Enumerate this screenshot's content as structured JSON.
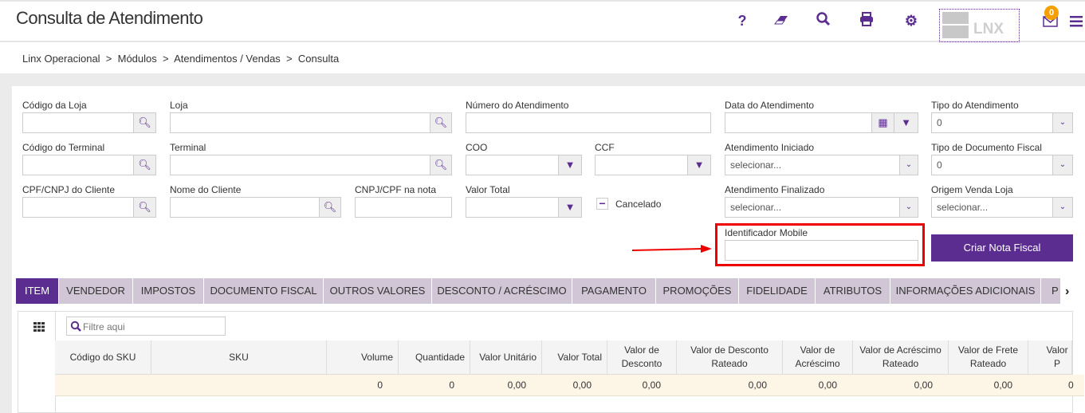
{
  "header": {
    "title": "Consulta de Atendimento",
    "icons": [
      "help-icon",
      "eraser-icon",
      "search-icon",
      "print-icon",
      "gear-icon"
    ],
    "logo_text": "LNX",
    "notifications_count": "0"
  },
  "breadcrumb": [
    "Linx Operacional",
    ">",
    "Módulos",
    ">",
    "Atendimentos / Vendas",
    ">",
    "Consulta"
  ],
  "form": {
    "codigo_loja": "Código da Loja",
    "loja": "Loja",
    "numero_atendimento": "Número do Atendimento",
    "data_atendimento": "Data do Atendimento",
    "tipo_atendimento": "Tipo do Atendimento",
    "tipo_atendimento_value": "0",
    "codigo_terminal": "Código do Terminal",
    "terminal": "Terminal",
    "coo": "COO",
    "ccf": "CCF",
    "atendimento_iniciado": "Atendimento Iniciado",
    "atendimento_iniciado_value": "selecionar...",
    "tipo_doc_fiscal": "Tipo de Documento Fiscal",
    "tipo_doc_fiscal_value": "0",
    "cpf_cliente": "CPF/CNPJ do Cliente",
    "nome_cliente": "Nome do Cliente",
    "cnpj_nota": "CNPJ/CPF na nota",
    "valor_total": "Valor Total",
    "cancelado": "Cancelado",
    "atendimento_finalizado": "Atendimento Finalizado",
    "atendimento_finalizado_value": "selecionar...",
    "origem_venda": "Origem Venda Loja",
    "origem_venda_value": "selecionar...",
    "identificador_mobile": "Identificador Mobile",
    "criar_nota": "Criar Nota Fiscal"
  },
  "accent": "#5c2d91",
  "highlight": "#e00000",
  "tabs": [
    "ITEM",
    "VENDEDOR",
    "IMPOSTOS",
    "DOCUMENTO FISCAL",
    "OUTROS VALORES",
    "DESCONTO / ACRÉSCIMO",
    "PAGAMENTO",
    "PROMOÇÕES",
    "FIDELIDADE",
    "ATRIBUTOS",
    "INFORMAÇÕES ADICIONAIS",
    "P"
  ],
  "grid": {
    "filter_placeholder": "Filtre aqui",
    "columns": [
      "Código do SKU",
      "SKU",
      "Volume",
      "Quantidade",
      "Valor Unitário",
      "Valor Total",
      "Valor de Desconto",
      "Valor de Desconto Rateado",
      "Valor de Acréscimo",
      "Valor de Acréscimo Rateado",
      "Valor de Frete Rateado",
      "Valor P"
    ],
    "row": [
      "",
      "",
      "0",
      "0",
      "0,00",
      "0,00",
      "0,00",
      "0,00",
      "0,00",
      "0,00",
      "0,00",
      "0"
    ]
  }
}
